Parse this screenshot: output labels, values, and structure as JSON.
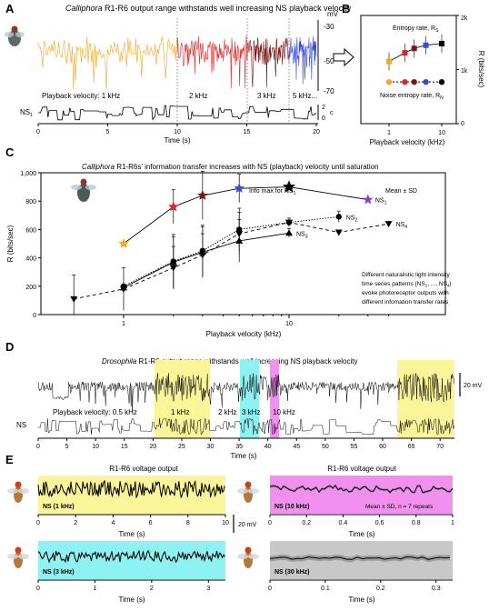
{
  "panel_labels": {
    "A": "A",
    "B": "B",
    "C": "C",
    "D": "D",
    "E": "E"
  },
  "panelA": {
    "title_italic": "Calliphora",
    "title_rest": " R1-R6 output range withstands well increasing NS playback velocity",
    "mv_unit": "mV",
    "mv_ticks": [
      "-30",
      "-50",
      "-70"
    ],
    "velocity_1": "Playback velocity: 1 kHz",
    "velocity_2": "2 kHz",
    "velocity_3": "3 kHz",
    "velocity_5": "5 kHz...",
    "ns_label": "NS",
    "ns_sub": "1",
    "ns_ticks": [
      "2",
      "0"
    ],
    "ns_unit": "c",
    "xlabel": "Time (s)",
    "xticks": [
      "0",
      "5",
      "10",
      "15",
      "20"
    ],
    "colors": {
      "orange": "#f5a623",
      "red": "#e02424",
      "darkred": "#7a1818",
      "blue": "#3a4bd8"
    }
  },
  "panelB": {
    "ylabel": "R (bits/sec)",
    "yticks": [
      "0",
      "1k",
      "2k"
    ],
    "xlabel": "Playback velocity (kHz)",
    "xticks": [
      "1",
      "10"
    ],
    "entropy_label": "Entropy rate, R",
    "entropy_sub": "S",
    "noise_label": "Noise entropy rate, R",
    "noise_sub": "N"
  },
  "panelC": {
    "title_italic": "Calliphora",
    "title_rest": " R1-R6s' information transfer increases with NS (playback) velocity until saturation",
    "ylabel": "R (bits/sec)",
    "yticks": [
      "0",
      "200",
      "400",
      "600",
      "800",
      "1,000"
    ],
    "xlabel": "Playback velocity (kHz)",
    "xticks": [
      "1",
      "10"
    ],
    "info_max": "Info max for NS",
    "info_max_sub": "1",
    "mean_sd": "Mean ± SD",
    "series_labels": [
      "NS",
      "NS",
      "NS",
      "NS"
    ],
    "series_subs": [
      "1",
      "2",
      "3",
      "4"
    ],
    "note_1": "Different naturalistic light intensity",
    "note_2": "time series patterns (NS",
    "note_2_sub_a": "1",
    "note_2_mid": ", ..., NS",
    "note_2_sub_b": "4",
    "note_2_end": ")",
    "note_3": "evoke photoreceptor outputs with",
    "note_4": "different infomation transfer rates"
  },
  "chart_data": {
    "type": "line",
    "x_scale": "log",
    "xlim": [
      0.4,
      40
    ],
    "ylim": [
      0,
      1000
    ],
    "xlabel": "Playback velocity (kHz)",
    "ylabel": "R (bits/sec)",
    "series": [
      {
        "name": "NS1",
        "x": [
          1,
          2,
          3,
          5,
          10,
          30
        ],
        "y": [
          500,
          760,
          840,
          890,
          900,
          810
        ],
        "yerr": [
          0,
          120,
          170,
          100,
          0,
          0
        ]
      },
      {
        "name": "NS2",
        "x": [
          1,
          2,
          3,
          5,
          10,
          20
        ],
        "y": [
          200,
          375,
          450,
          600,
          650,
          690
        ],
        "yerr": [
          0,
          190,
          180,
          150,
          30,
          40
        ]
      },
      {
        "name": "NS3",
        "x": [
          1,
          2,
          3,
          5,
          10
        ],
        "y": [
          190,
          370,
          440,
          520,
          575
        ],
        "yerr": [
          0,
          180,
          180,
          150,
          30
        ]
      },
      {
        "name": "NS4",
        "x": [
          0.5,
          1,
          2,
          3,
          5,
          10,
          20,
          40
        ],
        "y": [
          110,
          180,
          330,
          420,
          570,
          650,
          580,
          640
        ],
        "yerr": [
          170,
          150,
          150,
          150,
          150,
          0,
          0,
          0
        ]
      }
    ]
  },
  "panelD": {
    "title_italic": "Drosophila",
    "title_rest": " R1-R6 output range withstands well increasing NS playback velocity",
    "velocity_05": "Playback velocity: 0.5 kHz",
    "velocity_1": "1 kHz",
    "velocity_2": "2 kHz",
    "velocity_3": "3 kHz",
    "velocity_10": "10 kHz",
    "scale": "20 mV",
    "ns_label": "NS",
    "xlabel": "Time (s)",
    "xticks": [
      "0",
      "5",
      "10",
      "15",
      "20",
      "25",
      "30",
      "35",
      "40",
      "45",
      "50",
      "55",
      "60",
      "65",
      "70"
    ]
  },
  "panelE": {
    "title_left": "R1-R6 voltage output",
    "title_right": "R1-R6 voltage output",
    "ns1": "NS (1 kHz)",
    "ns10": "NS (10 kHz)",
    "ns3": "NS (3 kHz)",
    "ns30": "NS (30 kHz)",
    "mean_sd": "Mean ± SD, n = 7 repeats",
    "scale": "20 mV",
    "xlabel": "Time (s)",
    "ticks_1k": [
      "0",
      "2",
      "4",
      "6",
      "8",
      "10"
    ],
    "ticks_10k": [
      "0",
      "0.2",
      "0.4",
      "0.6",
      "0.8",
      "1"
    ],
    "ticks_3k": [
      "0",
      "1",
      "2",
      "3"
    ],
    "ticks_30k": [
      "0",
      "0.1",
      "0.2",
      "0.3"
    ],
    "colors": {
      "yellow": "#fbf59a",
      "magenta": "#f290f0",
      "cyan": "#8ff2f2",
      "gray": "#c8c8c8"
    }
  }
}
